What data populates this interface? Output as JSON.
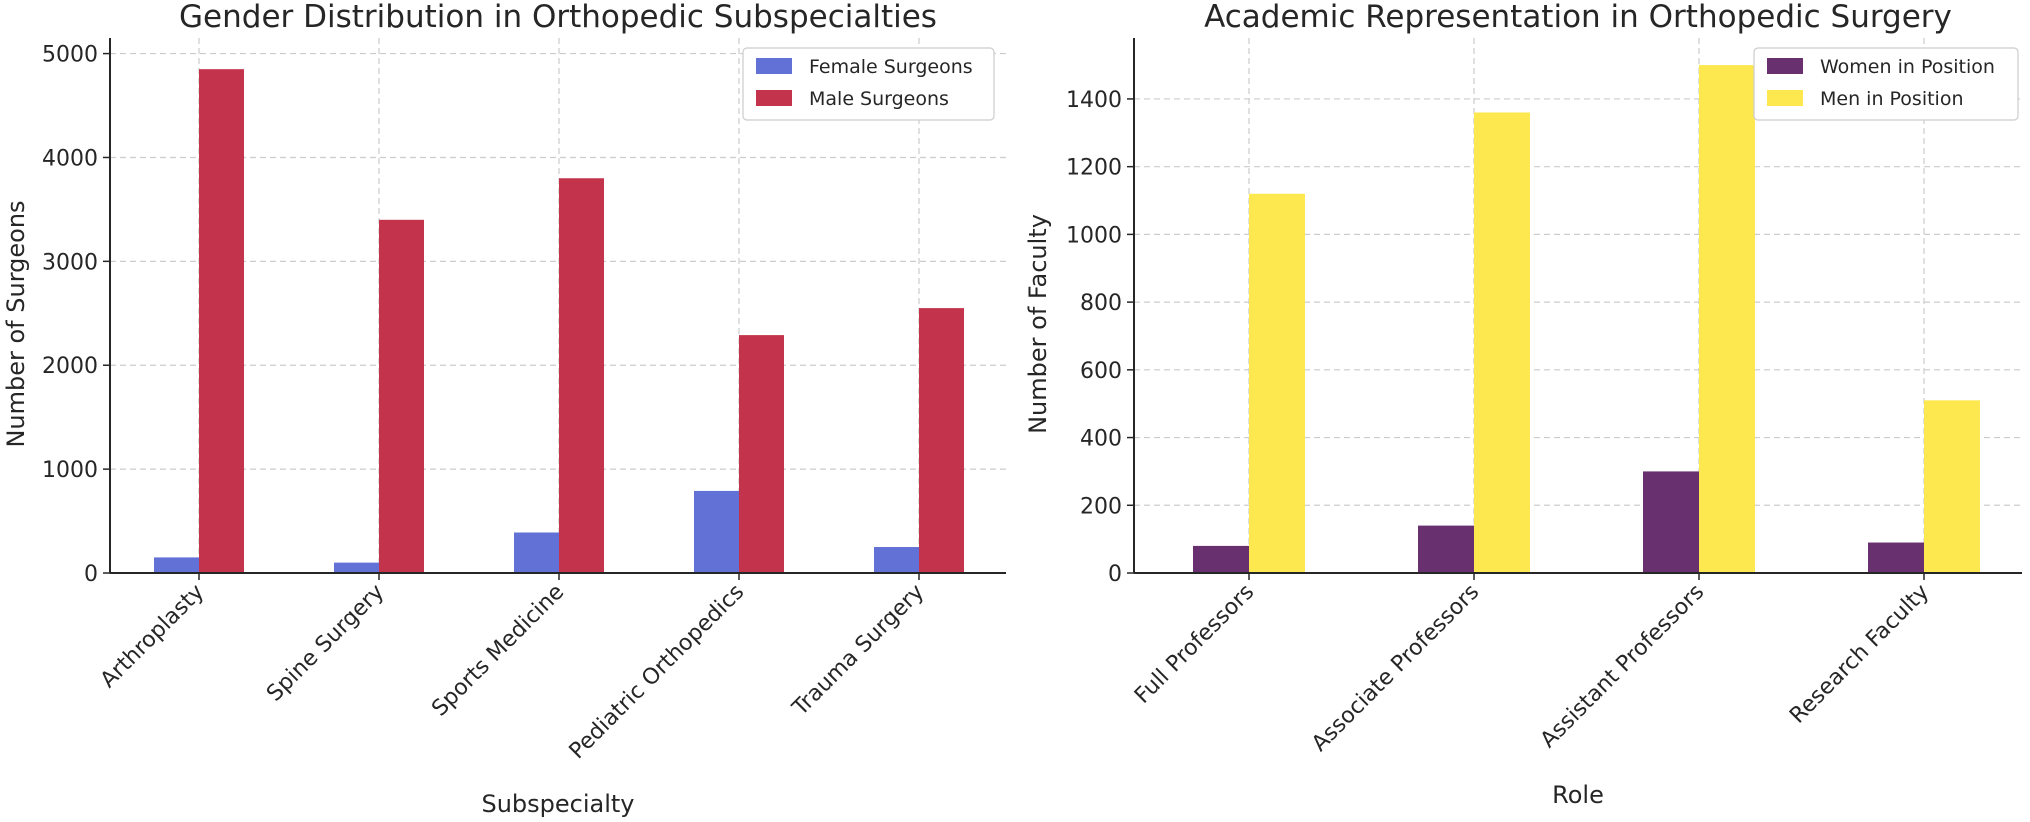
{
  "chart_data": [
    {
      "type": "bar",
      "title": "Gender Distribution in Orthopedic Subspecialties",
      "xlabel": "Subspecialty",
      "ylabel": "Number of Surgeons",
      "categories": [
        "Arthroplasty",
        "Spine Surgery",
        "Sports Medicine",
        "Pediatric Orthopedics",
        "Trauma Surgery"
      ],
      "series": [
        {
          "name": "Female Surgeons",
          "color": "#6271d6",
          "values": [
            150,
            100,
            390,
            790,
            250
          ]
        },
        {
          "name": "Male Surgeons",
          "color": "#c3344c",
          "values": [
            4850,
            3400,
            3800,
            2290,
            2550
          ]
        }
      ],
      "ylim": [
        0,
        5150
      ],
      "yticks": [
        0,
        1000,
        2000,
        3000,
        4000,
        5000
      ],
      "grid": true,
      "legend": "top-right"
    },
    {
      "type": "bar",
      "title": "Academic Representation in Orthopedic Surgery",
      "xlabel": "Role",
      "ylabel": "Number of Faculty",
      "categories": [
        "Full Professors",
        "Associate Professors",
        "Assistant Professors",
        "Research Faculty"
      ],
      "series": [
        {
          "name": "Women in Position",
          "color": "#68306f",
          "values": [
            80,
            140,
            300,
            90
          ]
        },
        {
          "name": "Men in Position",
          "color": "#fde94f",
          "values": [
            1120,
            1360,
            1500,
            510
          ]
        }
      ],
      "ylim": [
        0,
        1580
      ],
      "yticks": [
        0,
        200,
        400,
        600,
        800,
        1000,
        1200,
        1400
      ],
      "grid": true,
      "legend": "top-right"
    }
  ]
}
